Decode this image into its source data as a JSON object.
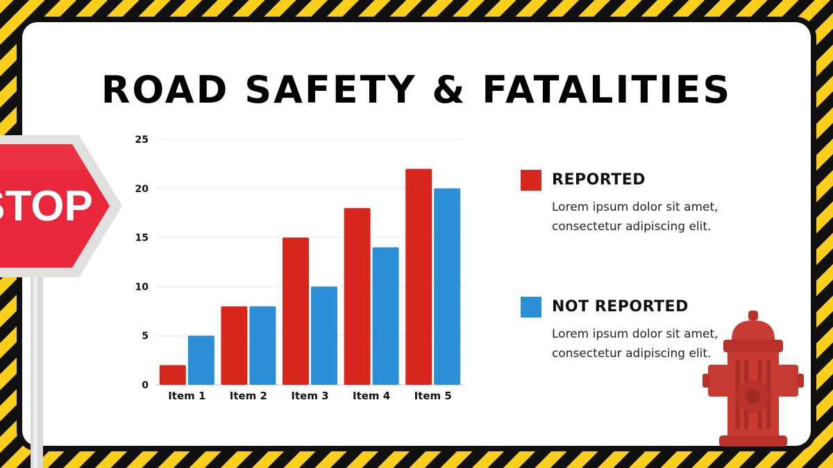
{
  "title": "ROAD SAFETY & FATALITIES",
  "colors": {
    "reported": "#d7261e",
    "not_reported": "#2a8fd6",
    "stripe_yellow": "#f9cf1c",
    "stripe_black": "#111111"
  },
  "icons": [
    "stop-sign",
    "fire-hydrant"
  ],
  "stop_sign_text": "STOP",
  "legend": [
    {
      "label": "REPORTED",
      "desc": "Lorem ipsum dolor sit amet, consectetur adipiscing elit."
    },
    {
      "label": "NOT REPORTED",
      "desc": "Lorem ipsum dolor sit amet, consectetur adipiscing elit."
    }
  ],
  "chart_data": {
    "type": "bar",
    "categories": [
      "Item 1",
      "Item 2",
      "Item 3",
      "Item 4",
      "Item 5"
    ],
    "series": [
      {
        "name": "REPORTED",
        "values": [
          2,
          8,
          15,
          18,
          22
        ]
      },
      {
        "name": "NOT REPORTED",
        "values": [
          5,
          8,
          10,
          14,
          20
        ]
      }
    ],
    "yticks": [
      0,
      5,
      10,
      15,
      20,
      25
    ],
    "ylim": [
      0,
      25
    ],
    "xlabel": "",
    "ylabel": "",
    "grid": true,
    "legend_position": "right"
  }
}
